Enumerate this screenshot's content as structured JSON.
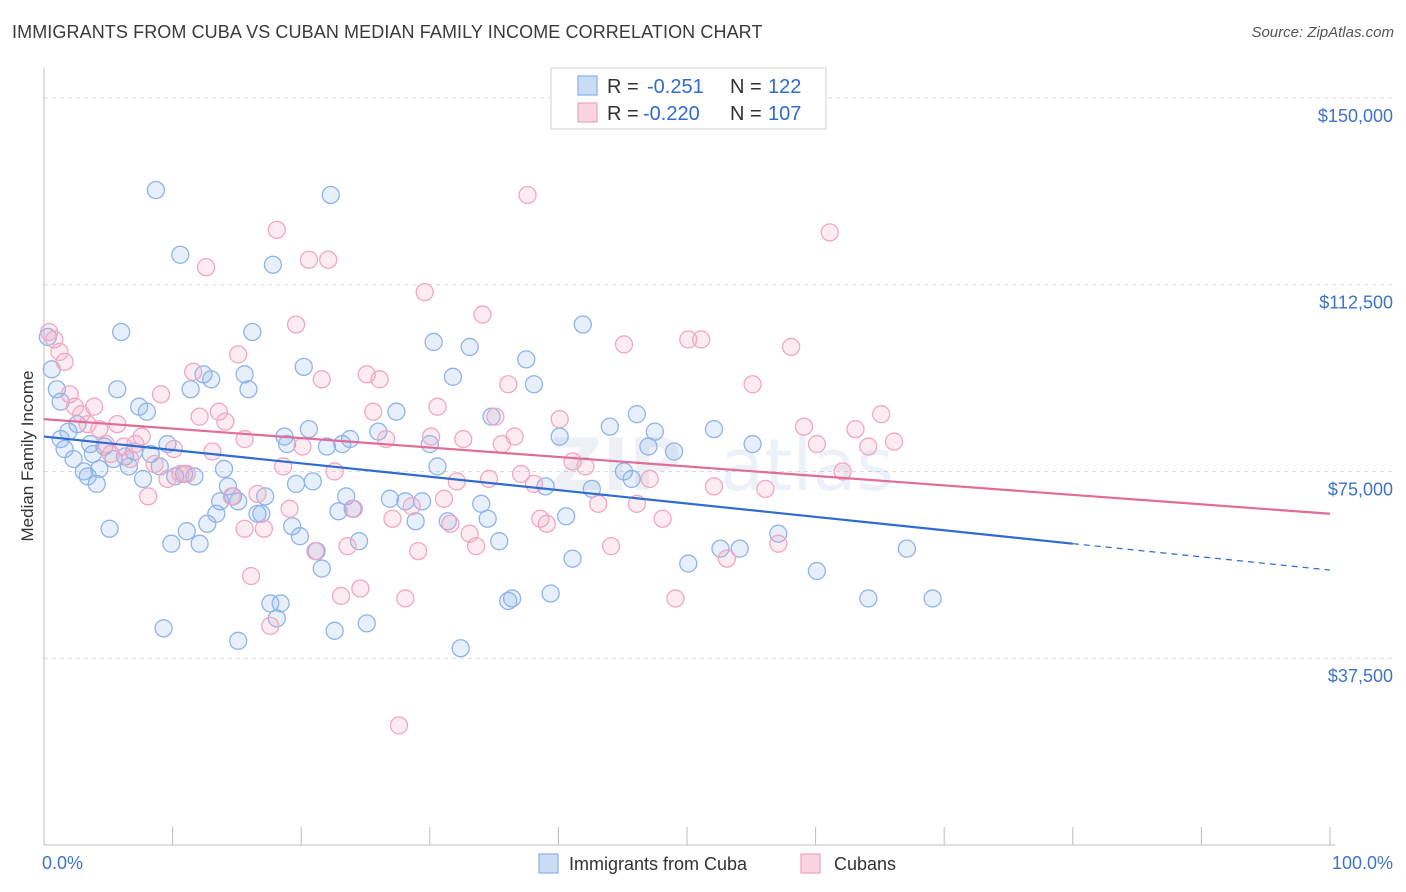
{
  "header": {
    "title": "IMMIGRANTS FROM CUBA VS CUBAN MEDIAN FAMILY INCOME CORRELATION CHART",
    "source": "Source: ZipAtlas.com"
  },
  "watermark": {
    "part1": "ZIP",
    "part2": "atlas"
  },
  "legend": {
    "rows": [
      {
        "r_label": "R = ",
        "r_value": "-0.251",
        "n_label": "N = ",
        "n_value": "122"
      },
      {
        "r_label": "R = ",
        "r_value": "-0.220",
        "n_label": "N = ",
        "n_value": "107"
      }
    ]
  },
  "chart_data": {
    "type": "scatter",
    "title": "IMMIGRANTS FROM CUBA VS CUBAN MEDIAN FAMILY INCOME CORRELATION CHART",
    "xlabel": "",
    "ylabel": "Median Family Income",
    "xlim": [
      0,
      100
    ],
    "ylim": [
      0,
      156000
    ],
    "x_tick_labels": [
      "0.0%",
      "100.0%"
    ],
    "y_ticks": [
      37500,
      75000,
      112500,
      150000
    ],
    "y_tick_labels": [
      "$37,500",
      "$75,000",
      "$112,500",
      "$150,000"
    ],
    "grid": true,
    "legend_position": "top-center",
    "series": [
      {
        "name": "Immigrants from Cuba",
        "color": "#8fb4ea",
        "line_color": "#2f6bd0",
        "r": -0.251,
        "n": 122,
        "trend": {
          "x0": 0,
          "y0": 82000,
          "x1": 80,
          "y1": 60500,
          "dash_to_x": 100,
          "dash_to_y": 55200
        },
        "points": [
          [
            0.3,
            102000
          ],
          [
            0.6,
            95500
          ],
          [
            1.0,
            91500
          ],
          [
            1.3,
            89000
          ],
          [
            1.3,
            81500
          ],
          [
            1.6,
            79500
          ],
          [
            1.9,
            83000
          ],
          [
            2.3,
            77500
          ],
          [
            2.6,
            84500
          ],
          [
            3.1,
            75000
          ],
          [
            3.4,
            74000
          ],
          [
            3.6,
            80500
          ],
          [
            3.8,
            78500
          ],
          [
            4.1,
            72500
          ],
          [
            4.3,
            75500
          ],
          [
            4.7,
            80000
          ],
          [
            5.1,
            63500
          ],
          [
            5.4,
            77500
          ],
          [
            5.7,
            91500
          ],
          [
            6.0,
            103000
          ],
          [
            6.3,
            78000
          ],
          [
            6.6,
            76000
          ],
          [
            7.0,
            79000
          ],
          [
            7.4,
            88000
          ],
          [
            7.7,
            73500
          ],
          [
            8.0,
            87000
          ],
          [
            8.3,
            78500
          ],
          [
            8.7,
            131500
          ],
          [
            9.0,
            76000
          ],
          [
            9.3,
            43500
          ],
          [
            9.6,
            80500
          ],
          [
            9.9,
            60500
          ],
          [
            10.2,
            74000
          ],
          [
            10.6,
            118500
          ],
          [
            10.9,
            74500
          ],
          [
            11.1,
            63000
          ],
          [
            11.4,
            91500
          ],
          [
            11.7,
            74000
          ],
          [
            12.1,
            60500
          ],
          [
            12.4,
            94500
          ],
          [
            12.7,
            64500
          ],
          [
            13.0,
            93500
          ],
          [
            13.4,
            66500
          ],
          [
            13.7,
            69000
          ],
          [
            14.0,
            75500
          ],
          [
            14.3,
            72000
          ],
          [
            14.7,
            70000
          ],
          [
            15.1,
            69000
          ],
          [
            15.1,
            41000
          ],
          [
            15.6,
            94500
          ],
          [
            15.9,
            91500
          ],
          [
            16.2,
            103000
          ],
          [
            16.6,
            66500
          ],
          [
            16.9,
            66500
          ],
          [
            17.2,
            70000
          ],
          [
            17.6,
            48500
          ],
          [
            17.8,
            116500
          ],
          [
            18.1,
            45500
          ],
          [
            18.4,
            48500
          ],
          [
            18.7,
            82000
          ],
          [
            18.9,
            80500
          ],
          [
            19.3,
            64000
          ],
          [
            19.6,
            72500
          ],
          [
            19.9,
            62000
          ],
          [
            20.2,
            96000
          ],
          [
            20.6,
            83500
          ],
          [
            20.9,
            73000
          ],
          [
            21.2,
            59000
          ],
          [
            21.6,
            55500
          ],
          [
            22.0,
            80000
          ],
          [
            22.3,
            130500
          ],
          [
            22.6,
            43000
          ],
          [
            22.9,
            67000
          ],
          [
            23.2,
            80500
          ],
          [
            23.5,
            70000
          ],
          [
            23.8,
            81500
          ],
          [
            24.0,
            67500
          ],
          [
            24.5,
            61000
          ],
          [
            25.1,
            44500
          ],
          [
            26.0,
            83000
          ],
          [
            26.9,
            69500
          ],
          [
            27.4,
            87000
          ],
          [
            28.1,
            69000
          ],
          [
            28.9,
            65000
          ],
          [
            29.4,
            69000
          ],
          [
            30.0,
            80500
          ],
          [
            30.3,
            101000
          ],
          [
            30.6,
            76000
          ],
          [
            31.4,
            65000
          ],
          [
            31.8,
            94000
          ],
          [
            32.4,
            39500
          ],
          [
            33.1,
            100000
          ],
          [
            34.0,
            68500
          ],
          [
            34.5,
            65500
          ],
          [
            34.8,
            86000
          ],
          [
            35.4,
            61000
          ],
          [
            36.1,
            49000
          ],
          [
            36.4,
            49500
          ],
          [
            37.5,
            97500
          ],
          [
            38.1,
            92500
          ],
          [
            39.0,
            72000
          ],
          [
            39.4,
            50500
          ],
          [
            40.1,
            82000
          ],
          [
            40.6,
            66000
          ],
          [
            41.1,
            57500
          ],
          [
            41.9,
            104500
          ],
          [
            42.6,
            71500
          ],
          [
            44.0,
            84000
          ],
          [
            45.1,
            75000
          ],
          [
            45.7,
            73500
          ],
          [
            46.1,
            86500
          ],
          [
            47.0,
            80000
          ],
          [
            47.5,
            83000
          ],
          [
            49.0,
            79000
          ],
          [
            50.1,
            56500
          ],
          [
            52.1,
            83500
          ],
          [
            52.6,
            59500
          ],
          [
            54.1,
            59500
          ],
          [
            55.1,
            80500
          ],
          [
            57.1,
            62500
          ],
          [
            60.1,
            55000
          ],
          [
            64.1,
            49500
          ],
          [
            67.1,
            59500
          ],
          [
            69.1,
            49500
          ]
        ]
      },
      {
        "name": "Cubans",
        "color": "#f2a7c0",
        "line_color": "#e06c98",
        "r": -0.22,
        "n": 107,
        "trend": {
          "x0": 0,
          "y0": 85500,
          "x1": 100,
          "y1": 66500
        },
        "points": [
          [
            0.4,
            103000
          ],
          [
            0.8,
            101500
          ],
          [
            1.2,
            99000
          ],
          [
            1.6,
            97000
          ],
          [
            2.0,
            90500
          ],
          [
            2.4,
            88000
          ],
          [
            2.9,
            86500
          ],
          [
            3.4,
            84500
          ],
          [
            3.9,
            88000
          ],
          [
            4.3,
            83500
          ],
          [
            4.8,
            80500
          ],
          [
            5.2,
            78500
          ],
          [
            5.7,
            84500
          ],
          [
            6.2,
            80000
          ],
          [
            6.7,
            77500
          ],
          [
            7.1,
            80500
          ],
          [
            7.6,
            82000
          ],
          [
            8.1,
            70000
          ],
          [
            8.6,
            76500
          ],
          [
            9.1,
            90500
          ],
          [
            9.6,
            73500
          ],
          [
            10.1,
            79500
          ],
          [
            10.6,
            74500
          ],
          [
            11.1,
            74500
          ],
          [
            11.6,
            95000
          ],
          [
            12.1,
            86000
          ],
          [
            12.6,
            116000
          ],
          [
            13.1,
            79000
          ],
          [
            13.6,
            87000
          ],
          [
            14.1,
            85000
          ],
          [
            14.6,
            70000
          ],
          [
            15.1,
            98500
          ],
          [
            15.6,
            63500
          ],
          [
            15.6,
            81500
          ],
          [
            16.1,
            54000
          ],
          [
            16.6,
            70500
          ],
          [
            17.1,
            63500
          ],
          [
            17.6,
            44000
          ],
          [
            18.1,
            123500
          ],
          [
            18.6,
            76000
          ],
          [
            19.1,
            67500
          ],
          [
            19.6,
            104500
          ],
          [
            20.1,
            80000
          ],
          [
            20.6,
            117500
          ],
          [
            21.1,
            59000
          ],
          [
            21.6,
            93500
          ],
          [
            22.1,
            117500
          ],
          [
            22.6,
            75000
          ],
          [
            23.1,
            50000
          ],
          [
            23.6,
            60000
          ],
          [
            24.1,
            67500
          ],
          [
            24.6,
            51500
          ],
          [
            25.1,
            94500
          ],
          [
            25.6,
            87000
          ],
          [
            26.1,
            93500
          ],
          [
            26.6,
            81500
          ],
          [
            27.1,
            65500
          ],
          [
            27.6,
            24000
          ],
          [
            28.1,
            49500
          ],
          [
            28.6,
            68000
          ],
          [
            29.1,
            59000
          ],
          [
            29.6,
            111000
          ],
          [
            30.1,
            82000
          ],
          [
            30.6,
            88000
          ],
          [
            31.1,
            69500
          ],
          [
            31.6,
            64500
          ],
          [
            32.1,
            73000
          ],
          [
            32.6,
            81500
          ],
          [
            33.1,
            62500
          ],
          [
            33.6,
            60000
          ],
          [
            34.1,
            106500
          ],
          [
            34.6,
            73500
          ],
          [
            35.1,
            86000
          ],
          [
            35.6,
            80500
          ],
          [
            36.1,
            92500
          ],
          [
            36.6,
            82000
          ],
          [
            37.1,
            74500
          ],
          [
            37.6,
            130500
          ],
          [
            38.1,
            72500
          ],
          [
            38.6,
            65500
          ],
          [
            39.1,
            64500
          ],
          [
            40.1,
            85500
          ],
          [
            41.1,
            77000
          ],
          [
            42.1,
            76000
          ],
          [
            43.1,
            68500
          ],
          [
            44.1,
            60000
          ],
          [
            45.1,
            100500
          ],
          [
            46.1,
            68500
          ],
          [
            47.1,
            73500
          ],
          [
            48.1,
            65500
          ],
          [
            49.1,
            49500
          ],
          [
            50.1,
            101500
          ],
          [
            51.1,
            101500
          ],
          [
            52.1,
            72000
          ],
          [
            53.1,
            57500
          ],
          [
            55.1,
            92500
          ],
          [
            56.1,
            71500
          ],
          [
            57.1,
            60500
          ],
          [
            58.1,
            100000
          ],
          [
            59.1,
            84000
          ],
          [
            60.1,
            80500
          ],
          [
            61.1,
            123000
          ],
          [
            62.1,
            75000
          ],
          [
            63.1,
            83500
          ],
          [
            64.1,
            80000
          ],
          [
            65.1,
            86500
          ],
          [
            66.1,
            81000
          ]
        ]
      }
    ]
  }
}
